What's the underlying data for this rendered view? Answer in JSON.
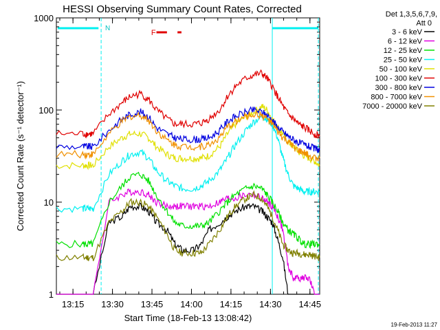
{
  "chart_data": {
    "type": "line",
    "title": "HESSI Observing Summary Count Rates, Corrected",
    "xlabel": "Start Time (18-Feb-13 13:08:42)",
    "ylabel": "Corrected Count Rate (s⁻¹ detector⁻¹)",
    "yscale": "log",
    "ylim": [
      1,
      1000
    ],
    "xlim_minutes": [
      0,
      100
    ],
    "x_ticks": [
      "13:15",
      "13:30",
      "13:45",
      "14:00",
      "14:15",
      "14:30",
      "14:45"
    ],
    "y_ticks": [
      "1",
      "10",
      "100",
      "1000"
    ],
    "legend_header": [
      "Det 1,3,5,6,7,9,",
      "Att 0"
    ],
    "legend_position": "right",
    "footer_date": "19-Feb-2013 11:27",
    "flags": {
      "N_label": "N",
      "F_label": "F"
    },
    "series": [
      {
        "name": "3 - 6 keV",
        "color": "#000000",
        "x": [
          0,
          10,
          12,
          14,
          20,
          25,
          28,
          32,
          35,
          38,
          42,
          45,
          48,
          52,
          55,
          58,
          62,
          65,
          68,
          72,
          75,
          78,
          80,
          82,
          84,
          86,
          88,
          90,
          92,
          94,
          96,
          98,
          100
        ],
        "y": [
          1,
          1,
          1,
          1,
          6,
          7,
          9,
          9,
          8,
          6,
          5,
          3.5,
          3,
          3,
          3.5,
          5,
          6,
          7,
          8,
          9,
          9,
          8,
          7,
          6,
          4,
          2.5,
          1,
          1,
          1,
          1,
          1,
          1,
          1
        ]
      },
      {
        "name": "6 - 12 keV",
        "color": "#e000e0",
        "x": [
          0,
          10,
          12,
          14,
          20,
          25,
          28,
          32,
          35,
          38,
          42,
          45,
          48,
          52,
          55,
          58,
          62,
          65,
          68,
          72,
          75,
          78,
          80,
          82,
          84,
          86,
          88,
          90,
          92,
          94,
          96,
          98,
          100
        ],
        "y": [
          1,
          1,
          1,
          1,
          10,
          12,
          13,
          13,
          12,
          10,
          9,
          9,
          9,
          9,
          9,
          9,
          10,
          11,
          11,
          12,
          12,
          11,
          10,
          9,
          7,
          5,
          2,
          1.5,
          1.5,
          1.5,
          1.5,
          1,
          1
        ]
      },
      {
        "name": "12 - 25 keV",
        "color": "#00e000",
        "x": [
          0,
          10,
          12,
          14,
          20,
          25,
          28,
          32,
          35,
          38,
          42,
          45,
          48,
          52,
          55,
          58,
          62,
          65,
          68,
          72,
          75,
          78,
          80,
          82,
          84,
          86,
          88,
          90,
          92,
          94,
          96,
          98,
          100
        ],
        "y": [
          3.5,
          3.5,
          3.5,
          3.5,
          10,
          15,
          19,
          20,
          17,
          12,
          8,
          6,
          5.5,
          5.5,
          5.5,
          6,
          8,
          10,
          12,
          14,
          15,
          14,
          12,
          10,
          8,
          6,
          5,
          4.5,
          4,
          3.5,
          3.5,
          3.5,
          3.5
        ]
      },
      {
        "name": "25 - 50 keV",
        "color": "#00f0f0",
        "x": [
          0,
          10,
          12,
          14,
          20,
          25,
          28,
          32,
          35,
          38,
          42,
          45,
          48,
          52,
          55,
          58,
          62,
          65,
          68,
          72,
          75,
          78,
          80,
          82,
          84,
          86,
          88,
          90,
          92,
          94,
          96,
          98,
          100
        ],
        "y": [
          8.5,
          8.5,
          8.5,
          8.5,
          20,
          28,
          33,
          35,
          30,
          22,
          17,
          15,
          14,
          14,
          15,
          17,
          22,
          30,
          42,
          60,
          75,
          85,
          80,
          70,
          50,
          30,
          20,
          15,
          14,
          13,
          13,
          13,
          13
        ]
      },
      {
        "name": "50 - 100 keV",
        "color": "#e0e000",
        "x": [
          0,
          10,
          12,
          14,
          20,
          25,
          28,
          32,
          35,
          38,
          42,
          45,
          48,
          52,
          55,
          58,
          62,
          65,
          68,
          72,
          75,
          78,
          80,
          82,
          84,
          86,
          88,
          90,
          92,
          94,
          96,
          98,
          100
        ],
        "y": [
          25,
          25,
          25,
          25,
          40,
          50,
          55,
          55,
          50,
          40,
          33,
          30,
          30,
          30,
          30,
          32,
          40,
          55,
          70,
          85,
          95,
          110,
          100,
          80,
          65,
          55,
          45,
          40,
          35,
          32,
          30,
          28,
          25
        ]
      },
      {
        "name": "100 - 300 keV",
        "color": "#e00000",
        "x": [
          0,
          10,
          12,
          14,
          20,
          25,
          28,
          32,
          35,
          38,
          42,
          45,
          48,
          52,
          55,
          58,
          62,
          65,
          68,
          72,
          75,
          78,
          80,
          82,
          84,
          86,
          88,
          90,
          92,
          94,
          96,
          98,
          100
        ],
        "y": [
          55,
          55,
          55,
          55,
          90,
          120,
          140,
          150,
          130,
          100,
          80,
          70,
          70,
          70,
          72,
          80,
          100,
          140,
          180,
          220,
          240,
          250,
          220,
          180,
          140,
          110,
          90,
          80,
          70,
          65,
          60,
          55,
          52
        ]
      },
      {
        "name": "300 - 800 keV",
        "color": "#0000e0",
        "x": [
          0,
          10,
          12,
          14,
          20,
          25,
          28,
          32,
          35,
          38,
          42,
          45,
          48,
          52,
          55,
          58,
          62,
          65,
          68,
          72,
          75,
          78,
          80,
          82,
          84,
          86,
          88,
          90,
          92,
          94,
          96,
          98,
          100
        ],
        "y": [
          40,
          40,
          40,
          40,
          60,
          80,
          90,
          95,
          85,
          65,
          55,
          50,
          48,
          48,
          48,
          50,
          60,
          75,
          85,
          95,
          100,
          95,
          88,
          78,
          65,
          58,
          52,
          48,
          44,
          42,
          40,
          38,
          37
        ]
      },
      {
        "name": "800 - 7000 keV",
        "color": "#f09000",
        "x": [
          0,
          10,
          12,
          14,
          20,
          25,
          28,
          32,
          35,
          38,
          42,
          45,
          48,
          52,
          55,
          58,
          62,
          65,
          68,
          72,
          75,
          78,
          80,
          82,
          84,
          86,
          88,
          90,
          92,
          94,
          96,
          98,
          100
        ],
        "y": [
          33,
          33,
          33,
          33,
          55,
          75,
          85,
          88,
          78,
          60,
          47,
          42,
          40,
          40,
          40,
          42,
          50,
          65,
          75,
          85,
          90,
          88,
          80,
          70,
          58,
          50,
          45,
          40,
          36,
          34,
          32,
          30,
          30
        ]
      },
      {
        "name": "7000 - 20000 keV",
        "color": "#808000",
        "x": [
          0,
          10,
          12,
          14,
          20,
          25,
          28,
          32,
          35,
          38,
          42,
          45,
          48,
          52,
          55,
          58,
          62,
          65,
          68,
          72,
          75,
          78,
          80,
          82,
          84,
          86,
          88,
          90,
          92,
          94,
          96,
          98,
          100
        ],
        "y": [
          2.5,
          2.5,
          2.5,
          2.5,
          6,
          8,
          10,
          10,
          9,
          7,
          4.5,
          3,
          2.8,
          2.8,
          2.8,
          3.5,
          5,
          7,
          9,
          11,
          12,
          11,
          9,
          7,
          5,
          3.5,
          3,
          2.8,
          2.8,
          2.7,
          2.7,
          2.6,
          2.5
        ]
      }
    ]
  }
}
